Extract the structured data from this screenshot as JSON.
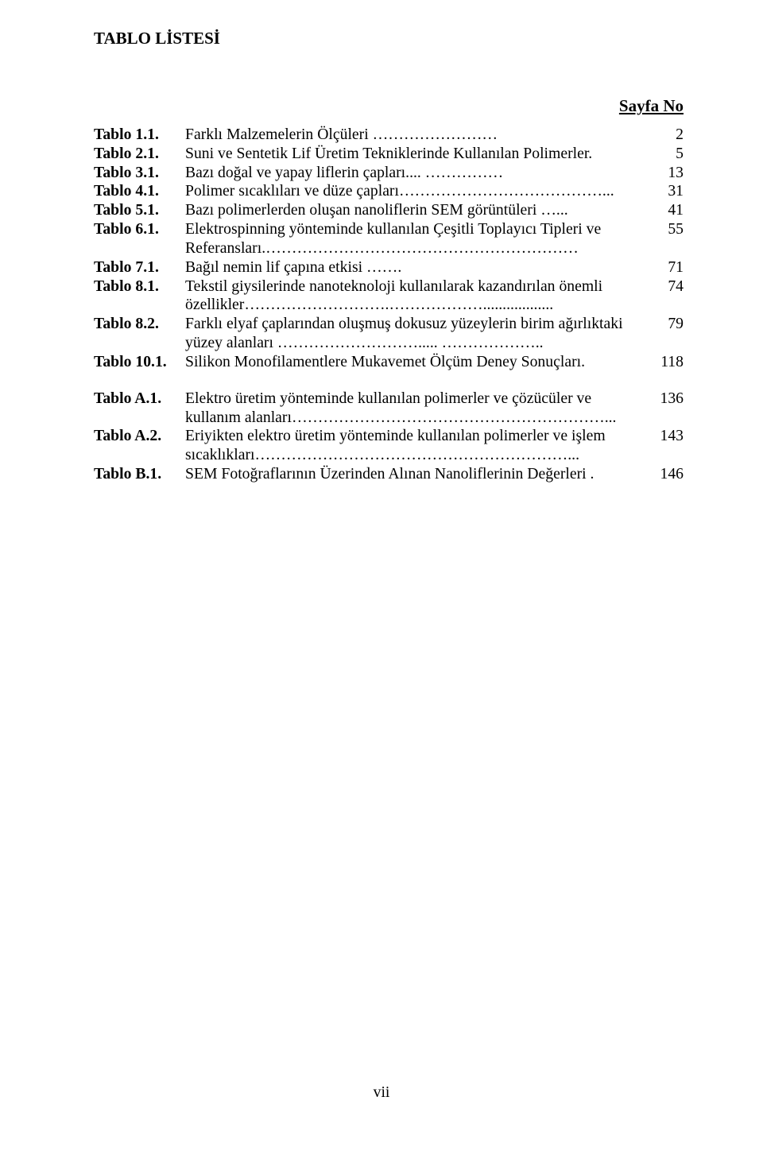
{
  "title": "TABLO LİSTESİ",
  "page_column_header": "Sayfa No",
  "groups": [
    {
      "entries": [
        {
          "label": "Tablo 1.1.",
          "text": "Farklı Malzemelerin Ölçüleri ……………………",
          "page": "2"
        },
        {
          "label": "Tablo 2.1.",
          "text": "Suni ve Sentetik Lif Üretim Tekniklerinde Kullanılan Polimerler.",
          "page": "5"
        },
        {
          "label": "Tablo 3.1.",
          "text": "Bazı doğal ve yapay liflerin çapları.... ……………",
          "page": "13"
        },
        {
          "label": "Tablo 4.1.",
          "text": "Polimer sıcaklıları ve düze çapları…………………………………...",
          "page": "31"
        },
        {
          "label": "Tablo 5.1.",
          "text": "Bazı polimerlerden oluşan nanoliflerin SEM görüntüleri …...",
          "page": "41"
        },
        {
          "label": "Tablo 6.1.",
          "text": "Elektrospinning yönteminde kullanılan Çeşitli Toplayıcı Tipleri ve Referansları.……………………………………………………",
          "page": "55"
        },
        {
          "label": "Tablo 7.1.",
          "text": "Bağıl nemin lif çapına etkisi …….",
          "page": "71"
        },
        {
          "label": "Tablo 8.1.",
          "text": "Tekstil giysilerinde nanoteknoloji kullanılarak kazandırılan önemli özellikler……………………….………………..................",
          "page": "74"
        },
        {
          "label": "Tablo 8.2.",
          "text": "Farklı elyaf çaplarından oluşmuş dokusuz yüzeylerin birim ağırlıktaki yüzey alanları ………………………..... ………………..",
          "page": "79"
        },
        {
          "label": "Tablo 10.1.",
          "text": "Silikon Monofilamentlere Mukavemet Ölçüm Deney Sonuçları.",
          "page": "118"
        }
      ]
    },
    {
      "entries": [
        {
          "label": "Tablo A.1.",
          "text": "Elektro üretim yönteminde kullanılan polimerler ve çözücüler ve kullanım alanları……………………………………………………...",
          "page": "136"
        },
        {
          "label": "Tablo A.2.",
          "text": "Eriyikten elektro üretim yönteminde kullanılan polimerler ve işlem sıcaklıkları……………………………………………………...",
          "page": "143"
        },
        {
          "label": "Tablo B.1.",
          "text": "SEM Fotoğraflarının Üzerinden Alınan  Nanoliflerinin Değerleri .",
          "page": "146"
        }
      ]
    }
  ],
  "footer_page_number": "vii"
}
